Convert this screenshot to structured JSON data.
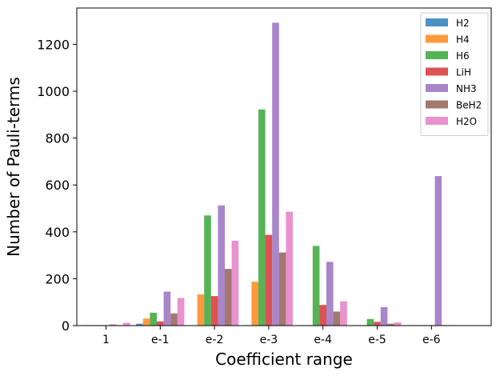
{
  "chart_data": {
    "type": "bar",
    "title": "",
    "xlabel": "Coefficient range",
    "ylabel": "Number of Pauli-terms",
    "categories": [
      "1",
      "e-1",
      "e-2",
      "e-3",
      "e-4",
      "e-5",
      "e-6"
    ],
    "yticks": [
      0,
      200,
      400,
      600,
      800,
      1000,
      1200
    ],
    "ylim": [
      0,
      1355
    ],
    "grid": false,
    "legend_position": "top-right",
    "series": [
      {
        "name": "H2",
        "color": "#1f77b4",
        "values": [
          2,
          8,
          0,
          2,
          2,
          2,
          2
        ]
      },
      {
        "name": "H4",
        "color": "#ff7f0e",
        "values": [
          2,
          30,
          133,
          187,
          2,
          2,
          2
        ]
      },
      {
        "name": "H6",
        "color": "#2ca02c",
        "values": [
          2,
          55,
          470,
          922,
          340,
          28,
          2
        ]
      },
      {
        "name": "LiH",
        "color": "#d62728",
        "values": [
          2,
          18,
          126,
          387,
          88,
          16,
          2
        ]
      },
      {
        "name": "NH3",
        "color": "#9467bd",
        "values": [
          5,
          145,
          513,
          1292,
          272,
          79,
          638
        ]
      },
      {
        "name": "BeH2",
        "color": "#8c564b",
        "values": [
          2,
          52,
          242,
          312,
          60,
          8,
          2
        ]
      },
      {
        "name": "H2O",
        "color": "#e377c2",
        "values": [
          12,
          118,
          362,
          486,
          104,
          14,
          2
        ]
      }
    ]
  }
}
